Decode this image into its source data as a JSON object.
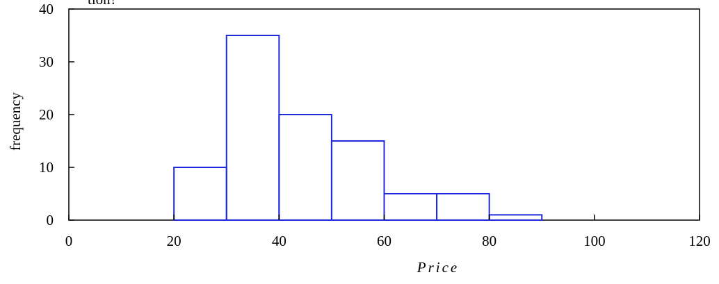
{
  "top_text": "tion?",
  "chart_data": {
    "type": "bar",
    "bins": [
      {
        "start": 20,
        "end": 30,
        "value": 10
      },
      {
        "start": 30,
        "end": 40,
        "value": 35
      },
      {
        "start": 40,
        "end": 50,
        "value": 20
      },
      {
        "start": 50,
        "end": 60,
        "value": 15
      },
      {
        "start": 60,
        "end": 70,
        "value": 5
      },
      {
        "start": 70,
        "end": 80,
        "value": 5
      },
      {
        "start": 80,
        "end": 90,
        "value": 1
      }
    ],
    "xlabel": "Price",
    "ylabel": "frequency",
    "xlim": [
      0,
      120
    ],
    "ylim": [
      0,
      40
    ],
    "xticks": [
      "0",
      "20",
      "40",
      "60",
      "80",
      "100",
      "120"
    ],
    "yticks": [
      "0",
      "10",
      "20",
      "30",
      "40"
    ],
    "bar_color": "#1f2bdc",
    "grid": false
  }
}
